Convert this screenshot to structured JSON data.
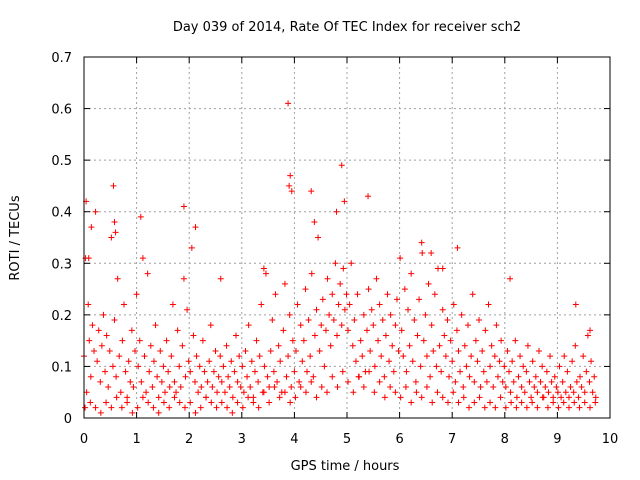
{
  "chart_data": {
    "type": "scatter",
    "title": "Day 039 of 2014, Rate Of TEC Index for receiver sch2",
    "xlabel": "GPS time / hours",
    "ylabel": "ROTI / TECUs",
    "xlim": [
      0,
      10
    ],
    "ylim": [
      0,
      0.7
    ],
    "x_ticks": [
      "0",
      "1",
      "2",
      "3",
      "4",
      "5",
      "6",
      "7",
      "8",
      "9",
      "10"
    ],
    "y_ticks": [
      "0",
      "0.1",
      "0.2",
      "0.3",
      "0.4",
      "0.5",
      "0.6",
      "0.7"
    ],
    "grid": true,
    "marker": "plus",
    "color": "#ff0000",
    "series": [
      {
        "x": [
          0.0,
          0.03,
          0.05,
          0.08,
          0.1,
          0.13,
          0.16,
          0.19,
          0.22,
          0.25,
          0.28,
          0.31,
          0.34,
          0.37,
          0.4,
          0.43,
          0.46,
          0.49,
          0.52,
          0.55,
          0.58,
          0.61,
          0.64,
          0.67,
          0.7,
          0.73,
          0.76,
          0.79,
          0.82,
          0.85,
          0.88,
          0.91,
          0.94,
          0.97,
          1.0,
          1.03,
          1.06,
          1.09,
          1.12,
          1.15,
          1.18,
          1.21,
          1.24,
          1.27,
          1.3,
          1.33,
          1.36,
          1.39,
          1.42,
          1.45,
          1.48,
          1.51,
          1.54,
          1.57,
          1.6,
          1.63,
          1.66,
          1.69,
          1.72,
          1.75,
          1.78,
          1.81,
          1.84,
          1.87,
          1.9,
          1.93,
          1.96,
          1.99,
          2.02,
          2.05,
          2.08,
          2.11,
          2.14,
          2.17,
          2.2,
          2.23,
          2.26,
          2.29,
          2.32,
          2.35,
          2.38,
          2.41,
          2.44,
          2.47,
          2.5,
          2.53,
          2.56,
          2.59,
          2.62,
          2.65,
          2.68,
          2.71,
          2.74,
          2.77,
          2.8,
          2.83,
          2.86,
          2.89,
          2.92,
          2.95,
          2.98,
          3.01,
          3.04,
          3.07,
          3.1,
          3.13,
          3.16,
          3.19,
          3.22,
          3.25,
          3.28,
          3.31,
          3.34,
          3.37,
          3.4,
          3.43,
          3.46,
          3.49,
          3.52,
          3.55,
          3.58,
          3.61,
          3.64,
          3.67,
          3.7,
          3.73,
          3.76,
          3.79,
          3.82,
          3.85,
          3.88,
          3.91,
          3.94,
          3.97,
          4.0,
          4.03,
          4.06,
          4.09,
          4.12,
          4.15,
          4.18,
          4.21,
          4.24,
          4.27,
          4.3,
          4.33,
          4.36,
          4.39,
          4.42,
          4.45,
          4.48,
          4.51,
          4.54,
          4.57,
          4.6,
          4.63,
          4.66,
          4.69,
          4.72,
          4.75,
          4.78,
          4.81,
          4.84,
          4.87,
          4.9,
          4.93,
          4.96,
          4.99,
          5.02,
          5.05,
          5.08,
          5.11,
          5.14,
          5.17,
          5.2,
          5.23,
          5.26,
          5.29,
          5.32,
          5.35,
          5.38,
          5.41,
          5.44,
          5.47,
          5.5,
          5.53,
          5.56,
          5.59,
          5.62,
          5.65,
          5.68,
          5.71,
          5.74,
          5.77,
          5.8,
          5.83,
          5.86,
          5.89,
          5.92,
          5.95,
          5.98,
          6.01,
          6.04,
          6.07,
          6.1,
          6.13,
          6.16,
          6.19,
          6.22,
          6.25,
          6.28,
          6.31,
          6.34,
          6.37,
          6.4,
          6.43,
          6.46,
          6.49,
          6.52,
          6.55,
          6.58,
          6.61,
          6.64,
          6.67,
          6.7,
          6.73,
          6.76,
          6.79,
          6.82,
          6.85,
          6.88,
          6.91,
          6.94,
          6.97,
          7.0,
          7.03,
          7.06,
          7.09,
          7.12,
          7.15,
          7.18,
          7.21,
          7.24,
          7.27,
          7.3,
          7.33,
          7.36,
          7.39,
          7.42,
          7.45,
          7.48,
          7.51,
          7.54,
          7.57,
          7.6,
          7.63,
          7.66,
          7.69,
          7.72,
          7.75,
          7.78,
          7.81,
          7.84,
          7.87,
          7.9,
          7.93,
          7.96,
          7.99,
          8.02,
          8.05,
          8.08,
          8.11,
          8.14,
          8.17,
          8.2,
          8.23,
          8.26,
          8.29,
          8.32,
          8.35,
          8.38,
          8.41,
          8.44,
          8.47,
          8.5,
          8.53,
          8.56,
          8.59,
          8.62,
          8.65,
          8.68,
          8.71,
          8.74,
          8.77,
          8.8,
          8.83,
          8.86,
          8.89,
          8.92,
          8.95,
          8.98,
          9.01,
          9.04,
          9.07,
          9.1,
          9.13,
          9.16,
          9.19,
          9.22,
          9.25,
          9.28,
          9.31,
          9.34,
          9.37,
          9.4,
          9.43,
          9.46,
          9.49,
          9.52,
          9.55,
          9.58,
          9.61,
          9.64,
          9.67,
          9.7,
          9.73,
          0.02,
          0.12,
          0.22,
          0.32,
          0.42,
          0.52,
          0.62,
          0.72,
          0.82,
          0.92,
          1.02,
          1.12,
          1.22,
          1.32,
          1.42,
          1.52,
          1.62,
          1.72,
          1.82,
          1.92,
          2.02,
          2.12,
          2.22,
          2.32,
          2.42,
          2.52,
          2.62,
          2.72,
          2.82,
          2.92,
          3.02,
          3.12,
          3.22,
          3.32,
          3.42,
          3.52,
          3.62,
          3.72,
          3.82,
          3.92,
          4.02,
          4.12,
          4.22,
          4.32,
          4.42,
          4.52,
          4.62,
          4.72,
          4.82,
          4.92,
          5.02,
          5.12,
          5.22,
          5.32,
          5.42,
          5.52,
          5.62,
          5.72,
          5.82,
          5.92,
          6.02,
          6.12,
          6.22,
          6.32,
          6.42,
          6.52,
          6.62,
          6.72,
          6.82,
          6.92,
          7.02,
          7.12,
          7.22,
          7.32,
          7.42,
          7.52,
          7.62,
          7.72,
          7.82,
          7.92,
          8.02,
          8.12,
          8.22,
          8.32,
          8.42,
          8.52,
          8.62,
          8.72,
          8.82,
          8.92,
          9.02,
          9.12,
          9.22,
          9.32,
          9.42,
          9.52,
          9.62,
          9.72,
          0.04,
          0.09,
          0.14,
          0.56,
          0.58,
          0.6,
          1.08,
          1.9,
          2.12,
          2.6,
          3.42,
          3.88,
          3.9,
          3.92,
          3.95,
          4.32,
          4.38,
          4.8,
          4.9,
          4.95,
          5.4,
          6.42,
          6.6,
          6.82,
          7.1,
          8.1,
          9.35,
          9.62
        ],
        "y": [
          0.12,
          0.31,
          0.05,
          0.22,
          0.15,
          0.08,
          0.18,
          0.13,
          0.4,
          0.11,
          0.17,
          0.07,
          0.14,
          0.2,
          0.09,
          0.16,
          0.06,
          0.13,
          0.35,
          0.1,
          0.19,
          0.08,
          0.27,
          0.12,
          0.05,
          0.15,
          0.22,
          0.09,
          0.04,
          0.11,
          0.07,
          0.17,
          0.06,
          0.13,
          0.24,
          0.1,
          0.15,
          0.07,
          0.31,
          0.12,
          0.05,
          0.28,
          0.09,
          0.14,
          0.06,
          0.11,
          0.18,
          0.08,
          0.04,
          0.13,
          0.07,
          0.1,
          0.05,
          0.15,
          0.09,
          0.06,
          0.12,
          0.22,
          0.07,
          0.05,
          0.17,
          0.1,
          0.06,
          0.14,
          0.27,
          0.08,
          0.21,
          0.11,
          0.09,
          0.33,
          0.16,
          0.07,
          0.12,
          0.05,
          0.1,
          0.06,
          0.15,
          0.09,
          0.04,
          0.07,
          0.11,
          0.18,
          0.06,
          0.09,
          0.13,
          0.05,
          0.08,
          0.12,
          0.07,
          0.1,
          0.05,
          0.14,
          0.08,
          0.06,
          0.11,
          0.04,
          0.09,
          0.16,
          0.07,
          0.12,
          0.06,
          0.1,
          0.05,
          0.13,
          0.08,
          0.18,
          0.06,
          0.11,
          0.04,
          0.09,
          0.15,
          0.07,
          0.12,
          0.22,
          0.05,
          0.1,
          0.28,
          0.08,
          0.06,
          0.13,
          0.19,
          0.09,
          0.24,
          0.07,
          0.14,
          0.11,
          0.05,
          0.17,
          0.26,
          0.08,
          0.12,
          0.2,
          0.06,
          0.15,
          0.09,
          0.13,
          0.22,
          0.07,
          0.18,
          0.11,
          0.15,
          0.25,
          0.09,
          0.19,
          0.12,
          0.28,
          0.08,
          0.16,
          0.21,
          0.35,
          0.13,
          0.18,
          0.23,
          0.1,
          0.17,
          0.27,
          0.2,
          0.14,
          0.24,
          0.19,
          0.3,
          0.16,
          0.22,
          0.26,
          0.18,
          0.29,
          0.21,
          0.24,
          0.17,
          0.22,
          0.3,
          0.14,
          0.19,
          0.11,
          0.24,
          0.08,
          0.15,
          0.12,
          0.2,
          0.09,
          0.17,
          0.25,
          0.13,
          0.21,
          0.18,
          0.1,
          0.27,
          0.15,
          0.22,
          0.12,
          0.19,
          0.08,
          0.16,
          0.24,
          0.11,
          0.2,
          0.14,
          0.09,
          0.18,
          0.23,
          0.13,
          0.31,
          0.17,
          0.12,
          0.25,
          0.09,
          0.21,
          0.14,
          0.28,
          0.11,
          0.19,
          0.07,
          0.16,
          0.23,
          0.1,
          0.32,
          0.15,
          0.2,
          0.12,
          0.26,
          0.08,
          0.18,
          0.13,
          0.24,
          0.1,
          0.29,
          0.14,
          0.09,
          0.21,
          0.16,
          0.12,
          0.19,
          0.08,
          0.15,
          0.11,
          0.22,
          0.07,
          0.17,
          0.13,
          0.09,
          0.2,
          0.06,
          0.14,
          0.1,
          0.18,
          0.08,
          0.12,
          0.24,
          0.07,
          0.15,
          0.11,
          0.19,
          0.06,
          0.13,
          0.09,
          0.17,
          0.07,
          0.22,
          0.1,
          0.14,
          0.06,
          0.12,
          0.18,
          0.08,
          0.11,
          0.15,
          0.07,
          0.1,
          0.06,
          0.13,
          0.09,
          0.05,
          0.11,
          0.07,
          0.15,
          0.04,
          0.08,
          0.12,
          0.06,
          0.1,
          0.05,
          0.09,
          0.14,
          0.07,
          0.04,
          0.11,
          0.06,
          0.08,
          0.05,
          0.13,
          0.07,
          0.1,
          0.04,
          0.06,
          0.09,
          0.05,
          0.12,
          0.07,
          0.04,
          0.08,
          0.06,
          0.05,
          0.1,
          0.04,
          0.07,
          0.12,
          0.05,
          0.09,
          0.04,
          0.06,
          0.11,
          0.05,
          0.14,
          0.07,
          0.04,
          0.08,
          0.06,
          0.12,
          0.05,
          0.09,
          0.16,
          0.07,
          0.11,
          0.05,
          0.08,
          0.04,
          0.02,
          0.03,
          0.02,
          0.01,
          0.03,
          0.02,
          0.04,
          0.02,
          0.03,
          0.01,
          0.02,
          0.04,
          0.03,
          0.02,
          0.01,
          0.03,
          0.02,
          0.04,
          0.03,
          0.02,
          0.03,
          0.01,
          0.02,
          0.04,
          0.03,
          0.02,
          0.03,
          0.02,
          0.01,
          0.03,
          0.02,
          0.04,
          0.03,
          0.02,
          0.05,
          0.03,
          0.06,
          0.04,
          0.05,
          0.03,
          0.04,
          0.06,
          0.05,
          0.07,
          0.04,
          0.06,
          0.05,
          0.08,
          0.06,
          0.09,
          0.07,
          0.05,
          0.08,
          0.06,
          0.09,
          0.05,
          0.07,
          0.04,
          0.06,
          0.05,
          0.04,
          0.06,
          0.03,
          0.05,
          0.04,
          0.06,
          0.03,
          0.05,
          0.04,
          0.03,
          0.05,
          0.03,
          0.04,
          0.02,
          0.03,
          0.04,
          0.02,
          0.03,
          0.02,
          0.04,
          0.02,
          0.03,
          0.02,
          0.03,
          0.02,
          0.03,
          0.02,
          0.04,
          0.02,
          0.03,
          0.02,
          0.03,
          0.02,
          0.03,
          0.02,
          0.03,
          0.02,
          0.03,
          0.42,
          0.31,
          0.37,
          0.45,
          0.38,
          0.36,
          0.39,
          0.41,
          0.37,
          0.27,
          0.29,
          0.61,
          0.45,
          0.47,
          0.44,
          0.44,
          0.38,
          0.4,
          0.49,
          0.42,
          0.43,
          0.34,
          0.32,
          0.29,
          0.33,
          0.27,
          0.22,
          0.17
        ]
      }
    ]
  }
}
